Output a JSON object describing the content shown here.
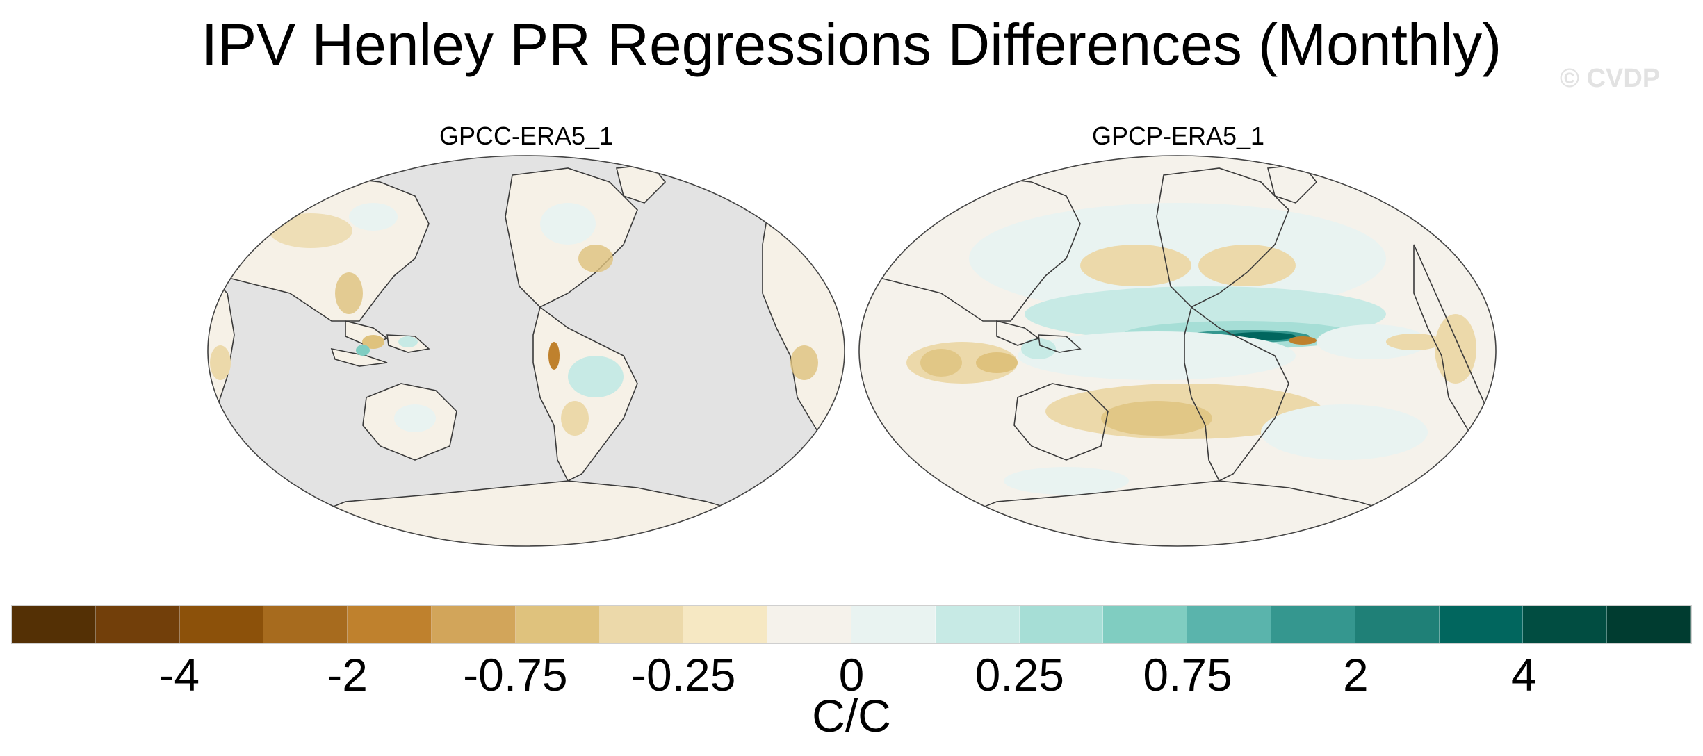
{
  "title": "IPV Henley PR Regressions Differences (Monthly)",
  "watermark": "© CVDP",
  "panels": [
    {
      "title": "GPCC-ERA5_1",
      "description": "land-only differences; ocean masked grey"
    },
    {
      "title": "GPCP-ERA5_1",
      "description": "global differences"
    }
  ],
  "colorbar": {
    "units": "C/C",
    "labels": [
      "-4",
      "-2",
      "-0.75",
      "-0.25",
      "0",
      "0.25",
      "0.75",
      "2",
      "4"
    ],
    "colors": [
      "#543005",
      "#723f0a",
      "#8c510a",
      "#a76b1e",
      "#bf812d",
      "#d2a55a",
      "#dfc27d",
      "#ecd9aa",
      "#f6e8c3",
      "#f5f2eb",
      "#e9f3f1",
      "#c7eae5",
      "#a6ded6",
      "#80cdc1",
      "#5ab4ac",
      "#35978f",
      "#1f8077",
      "#01665e",
      "#014d41",
      "#003c30"
    ]
  },
  "map_colors": {
    "ocean_mask": "#e3e3e3",
    "coast": "#3a3a3a",
    "neutral": "#f6f1e7"
  }
}
